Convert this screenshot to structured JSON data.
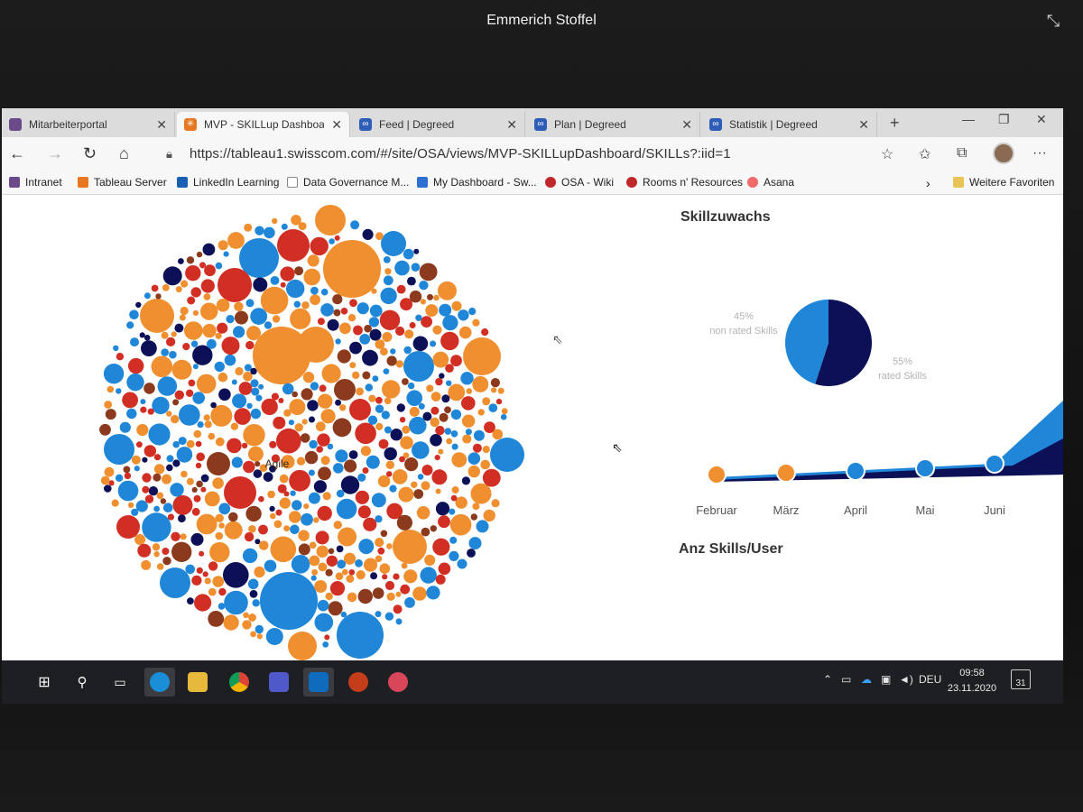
{
  "call": {
    "caller_name": "Emmerich Stoffel"
  },
  "browser": {
    "tabs": [
      {
        "label": "Mitarbeiterportal",
        "icon": "portal-icon",
        "active": false
      },
      {
        "label": "MVP - SKILLup Dashboard",
        "icon": "tableau-icon",
        "active": true
      },
      {
        "label": "Feed | Degreed",
        "icon": "degreed-icon",
        "active": false
      },
      {
        "label": "Plan | Degreed",
        "icon": "degreed-icon",
        "active": false
      },
      {
        "label": "Statistik | Degreed",
        "icon": "degreed-icon",
        "active": false
      }
    ],
    "url": "https://tableau1.swisscom.com/#/site/OSA/views/MVP-SKILLupDashboard/SKILLs?:iid=1",
    "favorites": [
      {
        "label": "Intranet",
        "icon": "intranet-icon",
        "color": "#6b4a8a"
      },
      {
        "label": "Tableau Server",
        "icon": "tableau-icon",
        "color": "#e87722"
      },
      {
        "label": "LinkedIn Learning",
        "icon": "linkedin-icon",
        "color": "#1a5fb4"
      },
      {
        "label": "Data Governance M...",
        "icon": "page-icon",
        "color": "#888888"
      },
      {
        "label": "My Dashboard - Sw...",
        "icon": "jira-icon",
        "color": "#2f6fd1"
      },
      {
        "label": "OSA - Wiki",
        "icon": "wiki-icon",
        "color": "#c0282c"
      },
      {
        "label": "Rooms n' Resources",
        "icon": "rooms-icon",
        "color": "#c0282c"
      },
      {
        "label": "Asana",
        "icon": "asana-icon",
        "color": "#f06a6a"
      }
    ],
    "favorites_more": "Weitere Favoriten"
  },
  "dashboard": {
    "bubble_label": "Agile",
    "colors": {
      "orange": "#ef8f2f",
      "blue": "#1f86d8",
      "red": "#d12e24",
      "navy": "#0b1057",
      "brown": "#8b3a1d"
    },
    "skillzuwachs_title": "Skillzuwachs",
    "skills_per_user_title": "Anz Skills/User",
    "chart_data": [
      {
        "type": "pie",
        "slices": [
          {
            "label": "non rated Skills",
            "percent_label": "45%",
            "value": 45,
            "color": "#1f86d8"
          },
          {
            "label": "rated Skills",
            "percent_label": "55%",
            "value": 55,
            "color": "#0b1057"
          }
        ]
      },
      {
        "type": "area",
        "categories": [
          "Februar",
          "März",
          "April",
          "Mai",
          "Juni"
        ],
        "marker_colors": [
          "#ef8f2f",
          "#ef8f2f",
          "#1f86d8",
          "#1f86d8",
          "#1f86d8"
        ]
      }
    ]
  },
  "taskbar": {
    "language": "DEU",
    "time": "09:58",
    "date": "23.11.2020",
    "notification_count": "31",
    "apps": [
      "windows-start-icon",
      "search-icon",
      "task-view-icon",
      "edge-icon",
      "file-explorer-icon",
      "chrome-icon",
      "teams-icon",
      "outlook-icon",
      "powerpoint-icon",
      "snipping-icon"
    ]
  }
}
